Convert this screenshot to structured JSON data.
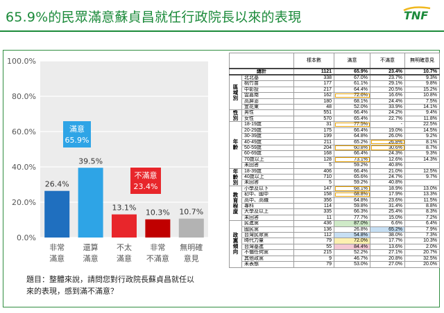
{
  "header": {
    "title": "65.9%的民眾滿意蘇貞昌就任行政院長以來的表現",
    "logo_text": "TNF",
    "accent": "#1b8a3a"
  },
  "question": "題目：整體來說，請問您對行政院長蘇貞昌就任以來的表現，感到滿不滿意？",
  "chart_data": {
    "type": "bar",
    "categories": [
      "非常滿意",
      "還算滿意",
      "不太滿意",
      "非常不滿意",
      "無明確意見"
    ],
    "values": [
      26.4,
      39.5,
      13.1,
      10.3,
      10.7
    ],
    "value_labels": [
      "26.4%",
      "39.5%",
      "13.1%",
      "10.3%",
      "10.7%"
    ],
    "colors": [
      "#1f6fbf",
      "#2ea4e6",
      "#e8262b",
      "#c00000",
      "#b3b3b3"
    ],
    "ylim": [
      0,
      100
    ],
    "yticks": [
      0,
      20,
      40,
      60,
      80,
      100
    ],
    "ytick_labels": [
      "0.0%",
      "20.0%",
      "40.0%",
      "60.0%",
      "80.0%",
      "100.0%"
    ],
    "xtick_labels": [
      [
        "非常",
        "滿意"
      ],
      [
        "還算",
        "滿意"
      ],
      [
        "不太",
        "滿意"
      ],
      [
        "非常",
        "不滿意"
      ],
      [
        "無明確",
        "意見"
      ]
    ],
    "summary_boxes": [
      {
        "label": "滿意",
        "value": "65.9%",
        "color": "#2ea4e6"
      },
      {
        "label": "不滿意",
        "value": "23.4%",
        "color": "#e8262b"
      }
    ],
    "grid": true
  },
  "table": {
    "headers": [
      "樣本數",
      "滿意",
      "不滿意",
      "無明確意見"
    ],
    "total": {
      "label": "總計",
      "values": [
        "1121",
        "65.9%",
        "23.4%",
        "10.7%"
      ]
    },
    "groups": [
      {
        "name": "區域別",
        "rows": [
          {
            "label": "北北基",
            "values": [
              "338",
              "67.0%",
              "23.7%",
              "9.3%"
            ]
          },
          {
            "label": "桃竹苗",
            "values": [
              "177",
              "61.1%",
              "29.1%",
              "9.8%"
            ]
          },
          {
            "label": "中彰投",
            "values": [
              "217",
              "64.4%",
              "20.5%",
              "15.2%"
            ]
          },
          {
            "label": "雲嘉南",
            "values": [
              "162",
              "72.6%",
              "16.6%",
              "10.8%"
            ],
            "hl": [
              1
            ]
          },
          {
            "label": "高屏澎",
            "values": [
              "180",
              "68.1%",
              "24.4%",
              "7.5%"
            ]
          },
          {
            "label": "宜花東",
            "values": [
              "48",
              "52.0%",
              "33.9%",
              "14.1%"
            ]
          }
        ]
      },
      {
        "name": "性別",
        "rows": [
          {
            "label": "男性",
            "values": [
              "551",
              "66.4%",
              "24.2%",
              "9.4%"
            ]
          },
          {
            "label": "女性",
            "values": [
              "570",
              "65.4%",
              "22.7%",
              "11.8%"
            ]
          }
        ]
      },
      {
        "name": "年齡",
        "rows": [
          {
            "label": "18-19歲",
            "values": [
              "31",
              "77.5%",
              "-",
              "22.5%"
            ],
            "hl": [
              1
            ]
          },
          {
            "label": "20-29歲",
            "values": [
              "175",
              "66.4%",
              "19.0%",
              "14.5%"
            ]
          },
          {
            "label": "30-39歲",
            "values": [
              "199",
              "64.8%",
              "26.0%",
              "9.2%"
            ]
          },
          {
            "label": "40-49歲",
            "values": [
              "211",
              "65.2%",
              "26.8%",
              "8.1%"
            ],
            "hl": [
              2
            ]
          },
          {
            "label": "50-59歲",
            "values": [
              "204",
              "60.8%",
              "30.6%",
              "8.7%"
            ],
            "hl": [
              1,
              2
            ]
          },
          {
            "label": "60-69歲",
            "values": [
              "168",
              "66.4%",
              "24.3%",
              "9.3%"
            ]
          },
          {
            "label": "70歲以上",
            "values": [
              "128",
              "73.1%",
              "12.6%",
              "14.3%"
            ],
            "hl": [
              1
            ]
          },
          {
            "label": "未回答",
            "values": [
              "5",
              "59.2%",
              "40.8%",
              ""
            ]
          }
        ]
      },
      {
        "name": "年齡別",
        "rows": [
          {
            "label": "18-39歲",
            "values": [
              "406",
              "66.4%",
              "21.0%",
              "12.5%"
            ]
          },
          {
            "label": "40歲以上",
            "values": [
              "710",
              "65.6%",
              "24.7%",
              "9.7%"
            ]
          },
          {
            "label": "未回答",
            "values": [
              "5",
              "59.2%",
              "40.8%",
              ""
            ]
          }
        ]
      },
      {
        "name": "教育程度",
        "rows": [
          {
            "label": "小學及以下",
            "values": [
              "147",
              "68.1%",
              "18.9%",
              "13.0%"
            ],
            "hl": [
              1
            ]
          },
          {
            "label": "初中、國中",
            "values": [
              "158",
              "68.8%",
              "17.9%",
              "13.3%"
            ],
            "hl": [
              1
            ]
          },
          {
            "label": "高中、高職",
            "values": [
              "356",
              "64.8%",
              "23.6%",
              "11.5%"
            ]
          },
          {
            "label": "專科",
            "values": [
              "114",
              "59.8%",
              "31.4%",
              "8.8%"
            ]
          },
          {
            "label": "大學及以上",
            "values": [
              "335",
              "66.3%",
              "25.4%",
              "8.3%"
            ]
          },
          {
            "label": "未回答",
            "values": [
              "11",
              "77.7%",
              "15.0%",
              "7.2%"
            ]
          }
        ]
      },
      {
        "name": "政黨傾向",
        "rows": [
          {
            "label": "民進黨",
            "values": [
              "436",
              "87.0%",
              "6.6%",
              "6.4%"
            ],
            "bg": {
              "1": "hlg"
            }
          },
          {
            "label": "國民黨",
            "values": [
              "136",
              "26.8%",
              "65.2%",
              "7.9%"
            ],
            "bg": {
              "2": "hlb"
            }
          },
          {
            "label": "台灣民眾黨",
            "values": [
              "112",
              "54.8%",
              "38.0%",
              "7.3%"
            ],
            "bg": {
              "1": "hlb"
            }
          },
          {
            "label": "時代力量",
            "values": [
              "79",
              "72.0%",
              "17.7%",
              "10.3%"
            ],
            "bg": {
              "1": "hly"
            }
          },
          {
            "label": "台灣基進",
            "values": [
              "55",
              "84.4%",
              "13.6%",
              "2.0%"
            ],
            "bg": {
              "1": "hlp"
            }
          },
          {
            "label": "不偏任何黨",
            "values": [
              "215",
              "52.2%",
              "27.1%",
              "20.7%"
            ]
          },
          {
            "label": "其他政黨",
            "values": [
              "9",
              "46.7%",
              "20.8%",
              "32.5%"
            ]
          },
          {
            "label": "未表態",
            "values": [
              "79",
              "53.0%",
              "27.0%",
              "20.0%"
            ]
          }
        ]
      }
    ]
  }
}
